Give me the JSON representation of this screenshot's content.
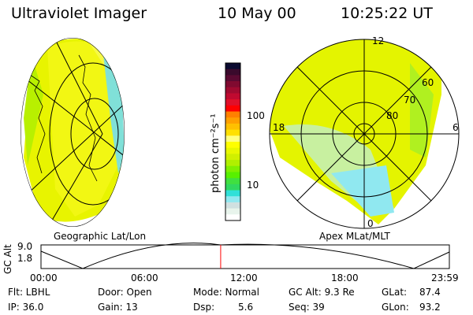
{
  "header": {
    "instrument": "Ultraviolet Imager",
    "date": "10 May 00",
    "time": "10:25:22 UT"
  },
  "colorbar": {
    "label": "photon cm⁻²s⁻¹",
    "ticks": [
      "100",
      "10"
    ],
    "colors": [
      "#0a0a30",
      "#3a0a2c",
      "#5a0a32",
      "#800a30",
      "#a00a30",
      "#c00a30",
      "#e0102a",
      "#ff0000",
      "#ff8000",
      "#ffa000",
      "#ffc000",
      "#ffe000",
      "#ffff80",
      "#ffff00",
      "#e8f800",
      "#d0f000",
      "#b0f000",
      "#80f000",
      "#58f000",
      "#40e040",
      "#30d860",
      "#30e0d8",
      "#90e8f0",
      "#d0e0e0",
      "#e8f4ec",
      "#ffffff"
    ]
  },
  "left_panel": {
    "label": "Geographic Lat/Lon"
  },
  "right_panel": {
    "label": "Apex MLat/MLT",
    "mlt_labels": [
      "12",
      "18",
      "6",
      "0"
    ],
    "lat_labels": [
      "60",
      "70",
      "80"
    ]
  },
  "altitude_plot": {
    "ylabel": "GC Alt",
    "yticks": [
      "9.0",
      "1.8"
    ],
    "xticks": [
      "00:00",
      "06:00",
      "12:00",
      "18:00",
      "23:59"
    ],
    "current_time_fraction": 0.44
  },
  "status": {
    "filter": "Flt: LBHL",
    "ip": "IP: 36.0",
    "door": "Door: Open",
    "gain": "Gain: 13",
    "mode": "Mode: Normal",
    "dsp_label": "Dsp:",
    "dsp_value": "5.6",
    "gc_alt": "GC Alt: 9.3 Re",
    "seq": "Seq: 39",
    "glat_label": "GLat:",
    "glat_value": "87.4",
    "glon_label": "GLon:",
    "glon_value": "93.2"
  }
}
